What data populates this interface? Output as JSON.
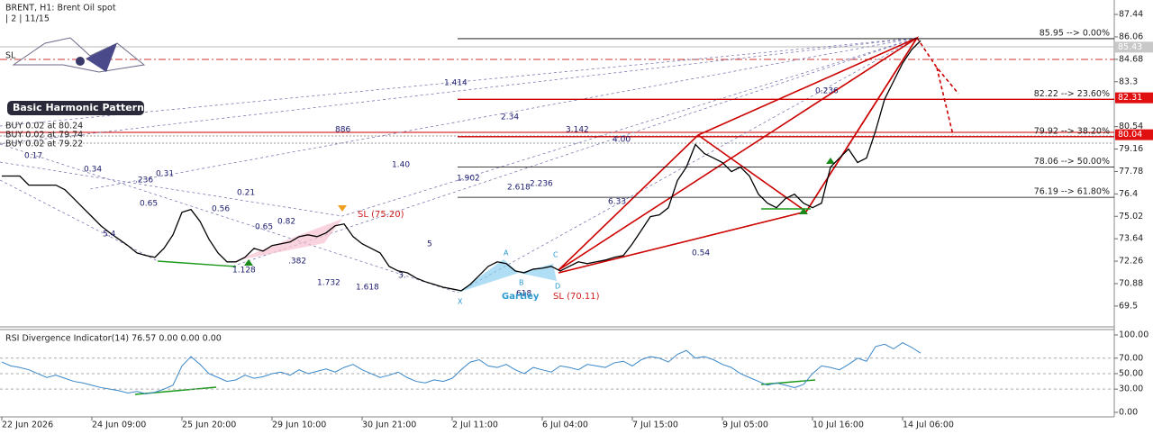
{
  "header": {
    "title": "BRENT, H1:  Brent Oil spot",
    "subtitle": "| 2 | 11/15",
    "sl": "SL",
    "logo": "Basic Harmonic Pattern",
    "orders": [
      "BUY 0.02 at 80.24",
      "BUY 0.02 at 79.74",
      "BUY 0.02 at 79.22"
    ]
  },
  "chart_data": [
    {
      "type": "line",
      "ylim": [
        68.22,
        88.33
      ],
      "yticks": [
        87.44,
        86.06,
        84.68,
        83.3,
        80.54,
        79.16,
        77.78,
        76.4,
        75.02,
        73.64,
        72.26,
        70.88,
        69.5
      ],
      "categories": [
        "22 Jun 2026",
        null,
        null,
        null,
        null,
        null,
        null,
        null,
        null,
        null,
        "24 Jun 09:00",
        null,
        null,
        null,
        null,
        null,
        null,
        null,
        null,
        null,
        "25 Jun 20:00",
        null,
        null,
        null,
        null,
        null,
        null,
        null,
        null,
        null,
        "29 Jun 10:00",
        null,
        null,
        null,
        null,
        null,
        null,
        null,
        null,
        null,
        "30 Jun 21:00",
        null,
        null,
        null,
        null,
        null,
        null,
        null,
        null,
        null,
        "2 Jul 11:00",
        null,
        null,
        null,
        null,
        null,
        null,
        null,
        null,
        null,
        "6 Jul 04:00",
        null,
        null,
        null,
        null,
        null,
        null,
        null,
        null,
        null,
        "7 Jul 15:00",
        null,
        null,
        null,
        null,
        null,
        null,
        null,
        null,
        null,
        "9 Jul 05:00",
        null,
        null,
        null,
        null,
        null,
        null,
        null,
        null,
        null,
        "10 Jul 16:00",
        null,
        null,
        null,
        null,
        null,
        null,
        null,
        null,
        null,
        "14 Jul 06:00",
        null,
        null
      ],
      "series": [
        {
          "name": "Brent Oil spot",
          "color": "#000000",
          "values": [
            77.5,
            77.5,
            77.5,
            76.94,
            76.94,
            76.94,
            76.94,
            76.66,
            76.11,
            75.55,
            75.0,
            74.44,
            74.0,
            73.61,
            73.22,
            72.77,
            72.61,
            72.5,
            73.05,
            73.88,
            75.27,
            75.44,
            74.72,
            73.61,
            72.77,
            72.22,
            72.22,
            72.5,
            73.05,
            72.88,
            73.22,
            73.33,
            73.44,
            73.77,
            73.88,
            73.77,
            74.0,
            74.44,
            74.55,
            73.77,
            73.33,
            73.05,
            72.77,
            71.94,
            71.66,
            71.55,
            71.22,
            71.0,
            70.83,
            70.66,
            70.55,
            70.44,
            70.83,
            71.38,
            71.94,
            72.22,
            72.11,
            71.66,
            71.55,
            71.77,
            71.83,
            71.94,
            71.66,
            71.94,
            72.22,
            72.11,
            72.22,
            72.33,
            72.5,
            72.61,
            73.33,
            74.16,
            75.0,
            75.11,
            75.55,
            77.22,
            78.05,
            79.44,
            78.88,
            78.61,
            78.33,
            77.77,
            78.05,
            77.5,
            76.38,
            75.83,
            75.55,
            76.11,
            76.38,
            75.83,
            75.55,
            75.83,
            78.05,
            78.61,
            79.16,
            78.33,
            78.61,
            80.27,
            82.22,
            83.33,
            84.44,
            85.27,
            85.83
          ]
        }
      ],
      "fib_levels": [
        {
          "value": 85.95,
          "label": "85.95 --> 0.00%",
          "color": "#000000"
        },
        {
          "value": 82.22,
          "label": "82.22 --> 23.60%",
          "color": "#cc0000"
        },
        {
          "value": 79.92,
          "label": "79.92 --> 38.20%",
          "color": "#cc0000"
        },
        {
          "value": 78.06,
          "label": "78.06 --> 50.00%",
          "color": "#000000"
        },
        {
          "value": 76.19,
          "label": "76.19 --> 61.80%",
          "color": "#000000"
        }
      ],
      "price_markers": [
        {
          "value": 85.43,
          "color": "#c8c8c8"
        },
        {
          "value": 82.31,
          "color": "#e01010"
        },
        {
          "value": 80.04,
          "color": "#e01010"
        }
      ],
      "annotations": [
        "1.414",
        "2.34",
        "3.142",
        "1.40",
        "1.902",
        "2.618",
        "2.236",
        "6.33",
        "0.236",
        "0.54",
        "886",
        "4.00",
        "1.618",
        "1.732",
        "1.128",
        ".382",
        "0.21",
        "0.31",
        "0.34",
        "0.17",
        ".236",
        "0.65",
        "0.56",
        "0.82",
        "0.65",
        "5.4",
        "5",
        "3.",
        "618"
      ],
      "pattern_labels": [
        "X",
        "A",
        "B",
        "C",
        "D"
      ],
      "pattern_name": "Gartley",
      "stop_labels": [
        "SL (70.11)",
        "SL (75.20)"
      ]
    },
    {
      "type": "line",
      "title": "RSI Divergence Indicator(14) 76.57 0.00 0.00 0.00",
      "ylim": [
        -5.9,
        107
      ],
      "yticks": [
        {
          "value": 100,
          "label": "100.00"
        },
        {
          "value": 70,
          "label": "70.00"
        },
        {
          "value": 50,
          "label": "50.00"
        },
        {
          "value": 30,
          "label": "30.00"
        },
        {
          "value": 0,
          "label": "0.00"
        }
      ],
      "levels": [
        70,
        50,
        30
      ],
      "series": [
        {
          "name": "RSI",
          "color": "#3a87c8",
          "values": [
            65,
            60,
            58,
            55,
            50,
            45,
            48,
            44,
            40,
            38,
            35,
            32,
            30,
            28,
            25,
            27,
            24,
            26,
            30,
            35,
            60,
            72,
            62,
            50,
            45,
            40,
            42,
            48,
            44,
            46,
            50,
            52,
            48,
            55,
            50,
            53,
            56,
            52,
            58,
            62,
            55,
            50,
            45,
            48,
            52,
            45,
            40,
            38,
            42,
            40,
            44,
            55,
            65,
            68,
            60,
            58,
            62,
            55,
            50,
            58,
            55,
            52,
            60,
            58,
            55,
            62,
            60,
            58,
            64,
            66,
            60,
            68,
            72,
            70,
            65,
            75,
            80,
            70,
            72,
            68,
            62,
            58,
            50,
            45,
            40,
            35,
            38,
            35,
            32,
            36,
            50,
            60,
            58,
            55,
            62,
            70,
            66,
            85,
            88,
            82,
            90,
            84,
            76.57
          ]
        }
      ]
    }
  ]
}
